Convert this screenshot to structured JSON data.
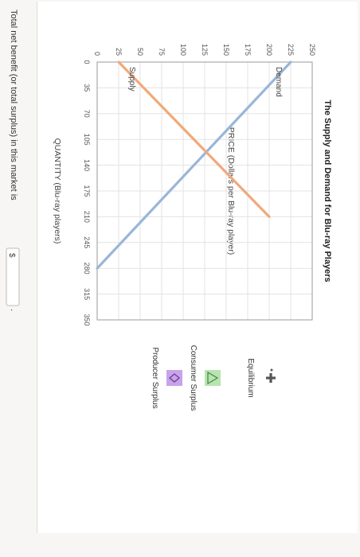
{
  "chart_data": {
    "type": "line",
    "title": "The Supply and Demand for Blu-ray Players",
    "xlabel": "QUANTITY (Blu-ray players)",
    "ylabel": "PRICE (Dollars per Blu-ray player)",
    "xlim": [
      0,
      350
    ],
    "ylim": [
      0,
      250
    ],
    "x_ticks": [
      "0",
      "35",
      "70",
      "105",
      "140",
      "175",
      "210",
      "245",
      "280",
      "315",
      "350"
    ],
    "y_ticks": [
      "0",
      "25",
      "50",
      "75",
      "100",
      "125",
      "150",
      "175",
      "200",
      "225",
      "250"
    ],
    "grid": true,
    "series": [
      {
        "name": "Demand",
        "x": [
          0,
          280
        ],
        "y": [
          225,
          0
        ],
        "color": "#9ab6d8"
      },
      {
        "name": "Supply",
        "x": [
          0,
          210
        ],
        "y": [
          25,
          200
        ],
        "color": "#f0a97a"
      }
    ]
  },
  "legend": [
    {
      "label": "Equilibrium",
      "icon": "plus-marker-icon",
      "color": "#555555"
    },
    {
      "label": "Consumer Surplus",
      "icon": "triangle-icon",
      "color": "#b8e4b0"
    },
    {
      "label": "Producer Surplus",
      "icon": "diamond-icon",
      "color": "#c9a3e8"
    }
  ],
  "question": {
    "text": "Total net benefit (or total surplus) in this market is",
    "prefix": "$",
    "value": ""
  }
}
